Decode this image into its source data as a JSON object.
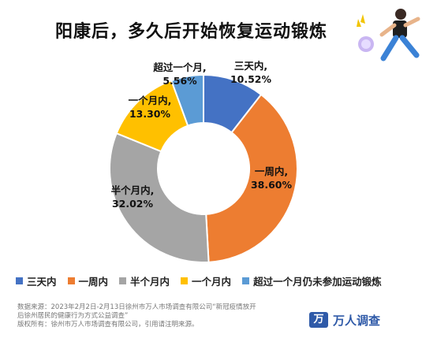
{
  "title": "阳康后，多久后开始恢复运动锻炼",
  "chart_data": {
    "type": "pie",
    "categories": [
      "三天内",
      "一周内",
      "半个月内",
      "一个月内",
      "超过一个月"
    ],
    "values": [
      10.52,
      38.6,
      32.02,
      13.3,
      5.56
    ],
    "value_labels": [
      "10.52%",
      "38.60%",
      "32.02%",
      "13.30%",
      "5.56%"
    ],
    "colors": [
      "#4472c4",
      "#ed7d31",
      "#a5a5a5",
      "#ffc000",
      "#5b9bd5"
    ],
    "style": "donut"
  },
  "slice_labels": [
    {
      "name": "三天内,",
      "value": "10.52%"
    },
    {
      "name": "一周内,",
      "value": "38.60%"
    },
    {
      "name": "半个月内,",
      "value": "32.02%"
    },
    {
      "name": "一个月内,",
      "value": "13.30%"
    },
    {
      "name": "超过一个月,",
      "value": "5.56%"
    }
  ],
  "legend": [
    {
      "label": "三天内",
      "color": "#4472c4"
    },
    {
      "label": "一周内",
      "color": "#ed7d31"
    },
    {
      "label": "半个月内",
      "color": "#a5a5a5"
    },
    {
      "label": "一个月内",
      "color": "#ffc000"
    },
    {
      "label": "超过一个月仍未参加运动锻炼",
      "color": "#5b9bd5"
    }
  ],
  "footer": {
    "line1": "数据来源：2023年2月2日-2月13日徐州市万人市场调查有限公司“新冠疫情放开",
    "line2": "后徐州居民的健康行为方式公益调查”",
    "line3": "版权所有：徐州市万人市场调查有限公司，引用请注明来源。"
  },
  "brand": {
    "logo": "万",
    "text": "万人调查"
  }
}
